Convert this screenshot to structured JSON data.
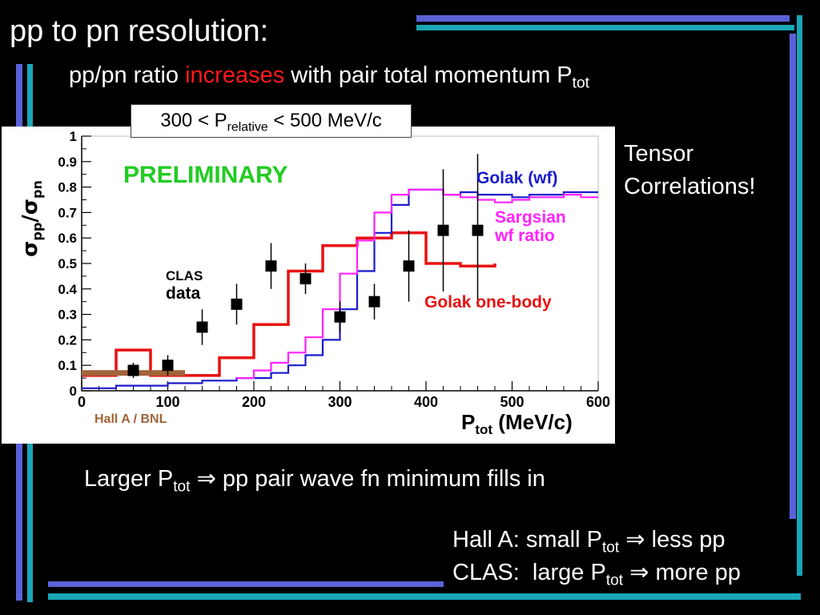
{
  "slide": {
    "title": "pp to pn resolution:",
    "subtitle": {
      "part1": "pp/pn ratio ",
      "highlight": "increases",
      "part2": " with pair total momentum P",
      "sub": "tot"
    },
    "range_box": {
      "part1": "300 < P",
      "sub": "relative",
      "part2": " < 500 MeV/c"
    },
    "side_note": {
      "line1": "Tensor",
      "line2": "Correlations!"
    },
    "conclusion": {
      "part1": "Larger P",
      "sub": "tot",
      "arrow": "⇒",
      "part2": " pp pair wave fn minimum fills in"
    },
    "halla_line": {
      "part1": "Hall A: small P",
      "sub": "tot",
      "arrow": "⇒",
      "part2": " less pp"
    },
    "clas_line": {
      "part1": "CLAS:  large P",
      "sub": "tot",
      "arrow": "⇒",
      "part2": " more pp"
    },
    "colors": {
      "accent_blue": "#5b62d8",
      "accent_cyan": "#1aa6b7",
      "highlight_red": "#ff1a1a",
      "golak_wf": "#1a1acc",
      "sargsian": "#ff22ff",
      "golak_one_body": "#e81010",
      "preliminary": "#22cc22",
      "hall_a": "#a0643a"
    }
  },
  "chart_data": {
    "type": "line",
    "xlabel": {
      "main": "P",
      "sub": "tot",
      "rest": " (MeV/c)"
    },
    "ylabel": {
      "a": "σ",
      "a_sub": "pp",
      "slash": "/",
      "b": "σ",
      "b_sub": "pn"
    },
    "xlim": [
      0,
      600
    ],
    "ylim": [
      0,
      1
    ],
    "x_ticks": [
      0,
      100,
      200,
      300,
      400,
      500,
      600
    ],
    "y_ticks": [
      0,
      0.1,
      0.2,
      0.3,
      0.4,
      0.5,
      0.6,
      0.7,
      0.8,
      0.9,
      1
    ],
    "x_tick_labels": [
      "0",
      "100",
      "200",
      "300",
      "400",
      "500",
      "600"
    ],
    "y_tick_labels": [
      "0",
      "0.1",
      "0.2",
      "0.3",
      "0.4",
      "0.5",
      "0.6",
      "0.7",
      "0.8",
      "0.9",
      "1"
    ],
    "annotations": {
      "preliminary": "PRELIMINARY",
      "clas1": "CLAS",
      "clas2": "data",
      "golak_wf": "Golak (wf)",
      "sargsian1": "Sargsian",
      "sargsian2": "wf ratio",
      "golak_one_body": "Golak one-body",
      "hall_a": "Hall A / BNL"
    },
    "series": [
      {
        "type": "step",
        "color": "#e81010",
        "edges": [
          0,
          40,
          80,
          120,
          160,
          200,
          240,
          280,
          320,
          360,
          400,
          440,
          480
        ],
        "values": [
          0.06,
          0.16,
          0.06,
          0.06,
          0.13,
          0.26,
          0.47,
          0.57,
          0.6,
          0.62,
          0.5,
          0.49,
          0.5
        ]
      },
      {
        "type": "step",
        "color": "#1a1acc",
        "edges": [
          0,
          20,
          40,
          60,
          80,
          100,
          120,
          140,
          160,
          180,
          200,
          220,
          240,
          260,
          280,
          300,
          320,
          340,
          360,
          380,
          400,
          420,
          440,
          460,
          480,
          500,
          520,
          540,
          560,
          580,
          600
        ],
        "values": [
          0.01,
          0.01,
          0.02,
          0.02,
          0.02,
          0.03,
          0.03,
          0.04,
          0.04,
          0.05,
          0.05,
          0.07,
          0.1,
          0.14,
          0.2,
          0.32,
          0.47,
          0.62,
          0.73,
          0.79,
          0.79,
          0.77,
          0.78,
          0.77,
          0.77,
          0.76,
          0.77,
          0.77,
          0.78,
          0.78
        ]
      },
      {
        "type": "step",
        "color": "#ff22ff",
        "edges": [
          180,
          200,
          220,
          240,
          260,
          280,
          300,
          320,
          340,
          360,
          380,
          400,
          420,
          440,
          460,
          480,
          500,
          520,
          540,
          560,
          580,
          600
        ],
        "values": [
          0.05,
          0.08,
          0.11,
          0.15,
          0.21,
          0.32,
          0.46,
          0.59,
          0.7,
          0.77,
          0.79,
          0.79,
          0.77,
          0.76,
          0.75,
          0.74,
          0.75,
          0.76,
          0.76,
          0.77,
          0.76
        ]
      },
      {
        "type": "points",
        "color": "#000000",
        "x": [
          60,
          100,
          140,
          180,
          220,
          260,
          300,
          340,
          380,
          420,
          460
        ],
        "y": [
          0.08,
          0.1,
          0.25,
          0.34,
          0.49,
          0.44,
          0.29,
          0.35,
          0.49,
          0.63,
          0.63
        ],
        "err": [
          0.03,
          0.04,
          0.07,
          0.08,
          0.09,
          0.06,
          0.06,
          0.07,
          0.14,
          0.24,
          0.3
        ]
      },
      {
        "type": "band",
        "color": "#a0643a",
        "x": [
          0,
          120
        ],
        "y": 0.07
      }
    ]
  }
}
